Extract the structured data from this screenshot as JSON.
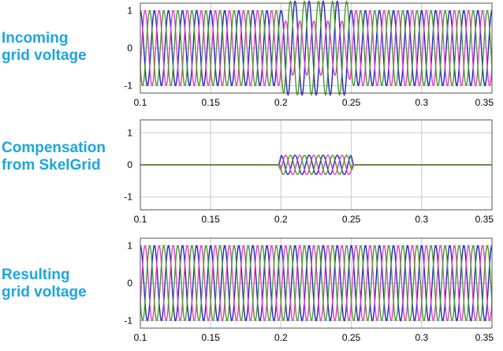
{
  "colors": {
    "phase_a": "#2222c8",
    "phase_b": "#e040c0",
    "phase_c": "#4a9a2a",
    "grid": "#c8c8c8",
    "label": "#1aa6e0"
  },
  "chart_data": [
    {
      "type": "line",
      "label_lines": [
        "Incoming",
        "grid voltage"
      ],
      "xlim": [
        0.1,
        0.35
      ],
      "ylim": [
        -1.2,
        1.2
      ],
      "xticks": [
        "0.1",
        "0.15",
        "0.2",
        "0.25",
        "0.3",
        "0.35"
      ],
      "yticks": [
        "1",
        "0",
        "-1"
      ],
      "grid": true,
      "frequency_cycles_per_x": 100,
      "series": [
        {
          "phase_deg": 0,
          "color": "#2222c8",
          "amplitude": 1,
          "dip": {
            "start": 0.2,
            "end": 0.25,
            "amplitude": 1.25,
            "phase_shift_deg": 0
          }
        },
        {
          "phase_deg": -120,
          "color": "#e040c0",
          "amplitude": 1,
          "dip": {
            "start": 0.2,
            "end": 0.25,
            "amplitude": 0.72,
            "phase_shift_deg": 0
          }
        },
        {
          "phase_deg": 120,
          "color": "#4a9a2a",
          "amplitude": 1,
          "dip": {
            "start": 0.2,
            "end": 0.25,
            "amplitude": 1.25,
            "phase_shift_deg": 0
          }
        }
      ]
    },
    {
      "type": "line",
      "label_lines": [
        "Compensation",
        "from SkelGrid"
      ],
      "xlim": [
        0.1,
        0.35
      ],
      "ylim": [
        -1.4,
        1.4
      ],
      "xticks": [
        "0.1",
        "0.15",
        "0.2",
        "0.25",
        "0.3",
        "0.35"
      ],
      "yticks": [
        "1",
        "0",
        "-1"
      ],
      "grid": true,
      "frequency_cycles_per_x": 100,
      "series": [
        {
          "phase_deg": 0,
          "color": "#2222c8",
          "amplitude": 0,
          "dip": {
            "start": 0.198,
            "end": 0.252,
            "amplitude": 0.3,
            "phase_shift_deg": 0
          }
        },
        {
          "phase_deg": -120,
          "color": "#e040c0",
          "amplitude": 0,
          "dip": {
            "start": 0.198,
            "end": 0.252,
            "amplitude": 0.3,
            "phase_shift_deg": 0
          }
        },
        {
          "phase_deg": 120,
          "color": "#4a9a2a",
          "amplitude": 0,
          "dip": {
            "start": 0.198,
            "end": 0.252,
            "amplitude": 0.3,
            "phase_shift_deg": 0
          }
        }
      ]
    },
    {
      "type": "line",
      "label_lines": [
        "Resulting",
        "grid voltage"
      ],
      "xlim": [
        0.1,
        0.35
      ],
      "ylim": [
        -1.2,
        1.2
      ],
      "xticks": [
        "0.1",
        "0.15",
        "0.2",
        "0.25",
        "0.3",
        "0.35"
      ],
      "yticks": [
        "1",
        "0",
        "-1"
      ],
      "grid": true,
      "frequency_cycles_per_x": 100,
      "series": [
        {
          "phase_deg": 0,
          "color": "#2222c8",
          "amplitude": 1
        },
        {
          "phase_deg": -120,
          "color": "#e040c0",
          "amplitude": 1
        },
        {
          "phase_deg": 120,
          "color": "#4a9a2a",
          "amplitude": 1
        }
      ]
    }
  ]
}
